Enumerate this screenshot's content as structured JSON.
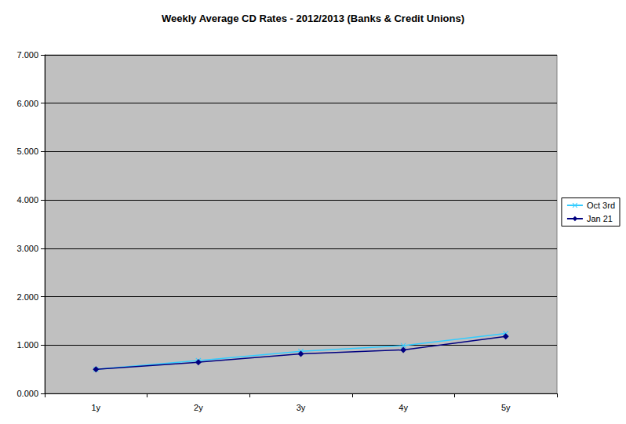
{
  "chart_data": {
    "type": "line",
    "title": "Weekly Average CD Rates - 2012/2013 (Banks & Credit Unions)",
    "categories": [
      "1y",
      "2y",
      "3y",
      "4y",
      "5y"
    ],
    "series": [
      {
        "name": "Oct 3rd",
        "color": "#33ccff",
        "marker": "x",
        "values": [
          0.5,
          0.68,
          0.87,
          0.99,
          1.24
        ]
      },
      {
        "name": "Jan 21",
        "color": "#000080",
        "marker": "diamond",
        "values": [
          0.5,
          0.645,
          0.82,
          0.9,
          1.18
        ]
      }
    ],
    "ylim": [
      0,
      7
    ],
    "yticks": [
      {
        "value": 0,
        "label": "0.000"
      },
      {
        "value": 1,
        "label": "1.000"
      },
      {
        "value": 2,
        "label": "2.000"
      },
      {
        "value": 3,
        "label": "3.000"
      },
      {
        "value": 4,
        "label": "4.000"
      },
      {
        "value": 5,
        "label": "5.000"
      },
      {
        "value": 6,
        "label": "6.000"
      },
      {
        "value": 7,
        "label": "7.000"
      }
    ],
    "grid": true,
    "legend": "right"
  }
}
